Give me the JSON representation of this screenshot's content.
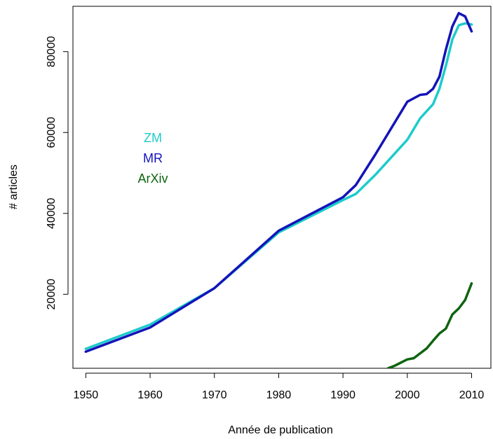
{
  "chart_data": {
    "type": "line",
    "title": "",
    "xlabel": "Année de publication",
    "ylabel": "# articles",
    "xlim": [
      1948,
      2013
    ],
    "ylim": [
      1700,
      91200
    ],
    "x_ticks": [
      1950,
      1960,
      1970,
      1980,
      1990,
      2000,
      2010
    ],
    "x_tick_labels": [
      "1950",
      "1960",
      "1970",
      "1980",
      "1990",
      "2000",
      "2010"
    ],
    "y_ticks": [
      20000,
      40000,
      60000,
      80000
    ],
    "y_tick_labels": [
      "20000",
      "40000",
      "60000",
      "80000"
    ],
    "grid": false,
    "legend_placement": "upper-left",
    "series": [
      {
        "name": "ZM",
        "color": "#1ecbcb",
        "x": [
          1950,
          1960,
          1970,
          1980,
          1990,
          1992,
          1995,
          2000,
          2002,
          2004,
          2005,
          2006,
          2007,
          2008,
          2009,
          2010
        ],
        "y": [
          6500,
          12500,
          21500,
          35300,
          43300,
          44800,
          49500,
          58200,
          63500,
          67000,
          70800,
          76500,
          83000,
          86500,
          87000,
          86700
        ]
      },
      {
        "name": "MR",
        "color": "#1414b8",
        "x": [
          1950,
          1960,
          1970,
          1980,
          1990,
          1992,
          1995,
          2000,
          2002,
          2003,
          2004,
          2005,
          2006,
          2007,
          2008,
          2009,
          2010
        ],
        "y": [
          5800,
          11800,
          21500,
          35700,
          44000,
          47000,
          54500,
          67600,
          69300,
          69500,
          70800,
          73800,
          80500,
          86200,
          89500,
          88700,
          85000
        ]
      },
      {
        "name": "ArXiv",
        "color": "#0e6410",
        "x": [
          1997,
          1998,
          2000,
          2001,
          2003,
          2004,
          2005,
          2006,
          2007,
          2008,
          2009,
          2010
        ],
        "y": [
          1700,
          2300,
          3900,
          4200,
          6600,
          8500,
          10300,
          11500,
          15000,
          16500,
          18600,
          22700
        ]
      }
    ]
  }
}
